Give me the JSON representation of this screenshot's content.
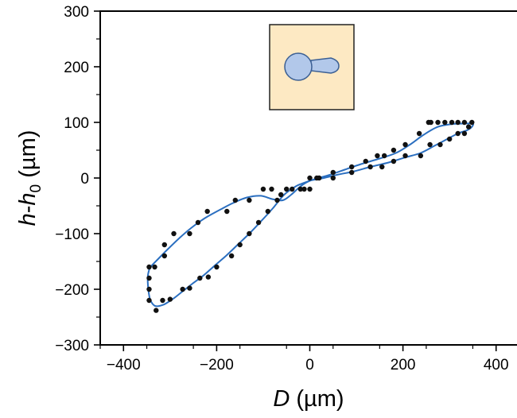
{
  "chart_data": {
    "type": "scatter",
    "xlabel": "D (µm)",
    "xlabel_parts": {
      "var": "D",
      "unit": " (µm)"
    },
    "ylabel": "h-h0 (µm)",
    "ylabel_parts": {
      "var1": "h",
      "dash": "-",
      "var2": "h",
      "sub": "0",
      "unit": " (µm)"
    },
    "xlim": [
      -450,
      450
    ],
    "ylim": [
      -300,
      300
    ],
    "xticks": [
      -400,
      -200,
      0,
      200,
      400
    ],
    "yticks": [
      -300,
      -200,
      -100,
      0,
      100,
      200,
      300
    ],
    "xtick_labels": [
      "−400",
      "−200",
      "0",
      "200",
      "400"
    ],
    "ytick_labels": [
      "−300",
      "−200",
      "−100",
      "0",
      "100",
      "200",
      "300"
    ],
    "grid": false,
    "series": [
      {
        "style": "markers",
        "color": "#111111",
        "points": [
          [
            -345,
            -160
          ],
          [
            -333,
            -160
          ],
          [
            -345,
            -180
          ],
          [
            -345,
            -200
          ],
          [
            -345,
            -220
          ],
          [
            -330,
            -238
          ],
          [
            -316,
            -220
          ],
          [
            -300,
            -218
          ],
          [
            -273,
            -200
          ],
          [
            -258,
            -198
          ],
          [
            -236,
            -180
          ],
          [
            -218,
            -178
          ],
          [
            -200,
            -160
          ],
          [
            -168,
            -140
          ],
          [
            -150,
            -120
          ],
          [
            -130,
            -100
          ],
          [
            -110,
            -80
          ],
          [
            -90,
            -60
          ],
          [
            -70,
            -40
          ],
          [
            -50,
            -20
          ],
          [
            -20,
            -20
          ],
          [
            0,
            -20
          ],
          [
            20,
            0
          ],
          [
            50,
            10
          ],
          [
            90,
            20
          ],
          [
            120,
            30
          ],
          [
            145,
            40
          ],
          [
            160,
            40
          ],
          [
            180,
            50
          ],
          [
            205,
            60
          ],
          [
            235,
            80
          ],
          [
            255,
            100
          ],
          [
            260,
            100
          ],
          [
            275,
            100
          ],
          [
            290,
            100
          ],
          [
            305,
            100
          ],
          [
            318,
            100
          ],
          [
            332,
            100
          ],
          [
            348,
            100
          ],
          [
            341,
            92
          ],
          [
            332,
            80
          ],
          [
            318,
            80
          ],
          [
            300,
            70
          ],
          [
            280,
            60
          ],
          [
            258,
            60
          ],
          [
            238,
            40
          ],
          [
            205,
            40
          ],
          [
            180,
            30
          ],
          [
            155,
            20
          ],
          [
            130,
            20
          ],
          [
            90,
            10
          ],
          [
            50,
            0
          ],
          [
            15,
            0
          ],
          [
            0,
            0
          ],
          [
            -12,
            -20
          ],
          [
            -38,
            -20
          ],
          [
            -62,
            -30
          ],
          [
            -82,
            -20
          ],
          [
            -100,
            -20
          ],
          [
            -130,
            -40
          ],
          [
            -160,
            -40
          ],
          [
            -178,
            -60
          ],
          [
            -220,
            -60
          ],
          [
            -240,
            -80
          ],
          [
            -258,
            -100
          ],
          [
            -292,
            -100
          ],
          [
            -312,
            -120
          ],
          [
            -312,
            -140
          ]
        ]
      },
      {
        "style": "line",
        "color": "#2b6fc0",
        "points": [
          [
            -345,
            -165
          ],
          [
            -348,
            -180
          ],
          [
            -346,
            -205
          ],
          [
            -342,
            -220
          ],
          [
            -332,
            -230
          ],
          [
            -315,
            -228
          ],
          [
            -295,
            -218
          ],
          [
            -275,
            -205
          ],
          [
            -252,
            -190
          ],
          [
            -228,
            -175
          ],
          [
            -205,
            -158
          ],
          [
            -180,
            -140
          ],
          [
            -155,
            -120
          ],
          [
            -130,
            -100
          ],
          [
            -105,
            -78
          ],
          [
            -80,
            -55
          ],
          [
            -55,
            -30
          ],
          [
            -30,
            -15
          ],
          [
            -10,
            -8
          ],
          [
            10,
            -2
          ],
          [
            40,
            5
          ],
          [
            75,
            15
          ],
          [
            110,
            25
          ],
          [
            150,
            35
          ],
          [
            185,
            45
          ],
          [
            215,
            60
          ],
          [
            245,
            78
          ],
          [
            275,
            92
          ],
          [
            305,
            97
          ],
          [
            335,
            98
          ],
          [
            350,
            98
          ],
          [
            348,
            92
          ],
          [
            338,
            86
          ],
          [
            318,
            80
          ],
          [
            295,
            70
          ],
          [
            268,
            58
          ],
          [
            238,
            45
          ],
          [
            205,
            37
          ],
          [
            170,
            28
          ],
          [
            130,
            20
          ],
          [
            95,
            12
          ],
          [
            60,
            6
          ],
          [
            30,
            0
          ],
          [
            0,
            -5
          ],
          [
            -20,
            -15
          ],
          [
            -40,
            -30
          ],
          [
            -58,
            -40
          ],
          [
            -80,
            -38
          ],
          [
            -105,
            -32
          ],
          [
            -135,
            -35
          ],
          [
            -165,
            -45
          ],
          [
            -195,
            -58
          ],
          [
            -225,
            -72
          ],
          [
            -255,
            -90
          ],
          [
            -280,
            -108
          ],
          [
            -305,
            -128
          ],
          [
            -325,
            -145
          ],
          [
            -340,
            -158
          ],
          [
            -345,
            -165
          ]
        ]
      }
    ]
  },
  "inset": {
    "icon": "droplet-with-neck-icon",
    "background": "#fde9c3",
    "fill": "#b2c8ea",
    "stroke": "#3b5f93"
  }
}
